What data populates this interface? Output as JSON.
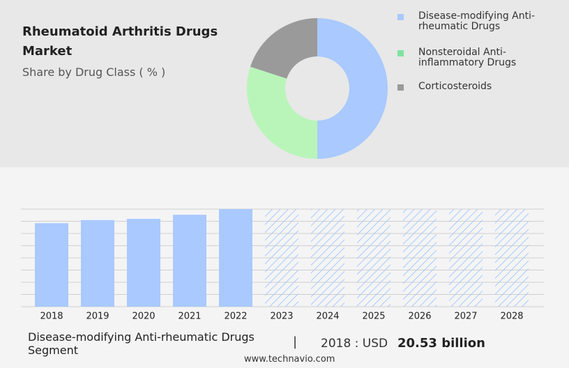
{
  "chart_data": [
    {
      "type": "donut",
      "title": "Rheumatoid Arthritis Drugs Market",
      "subtitle": "Share by Drug Class ( % )",
      "categories": [
        "Disease-modifying Anti-rheumatic Drugs",
        "Nonsteroidal Anti-inflammatory Drugs",
        "Corticosteroids"
      ],
      "values": [
        50,
        30,
        20
      ],
      "colors": [
        "#a9c9ff",
        "#b9f5b9",
        "#9a9a9a"
      ],
      "legend_colors": [
        "#a9c9ff",
        "#7fe3a0",
        "#9a9a9a"
      ]
    },
    {
      "type": "bar",
      "categories": [
        "2018",
        "2019",
        "2020",
        "2021",
        "2022",
        "2023",
        "2024",
        "2025",
        "2026",
        "2027",
        "2028"
      ],
      "values": [
        20.53,
        21.3,
        21.6,
        22.6,
        24,
        null,
        null,
        null,
        null,
        null,
        null
      ],
      "color": "#a9c9ff",
      "ylim": [
        0,
        24
      ],
      "yticks": [
        0,
        3,
        6,
        9,
        12,
        15,
        18,
        21,
        24
      ],
      "grid": true
    }
  ],
  "footer": {
    "segment": "Disease-modifying Anti-rheumatic Drugs Segment",
    "year_label": "2018 : USD",
    "value": "20.53 billion",
    "website": "www.technavio.com"
  }
}
